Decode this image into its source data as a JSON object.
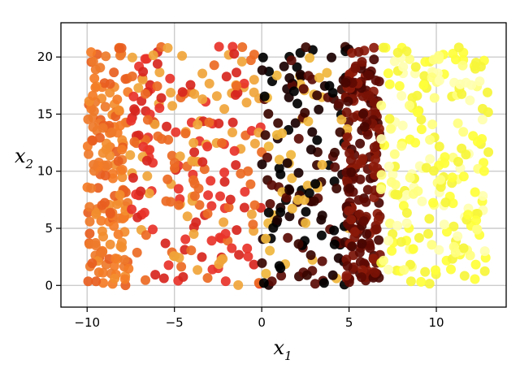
{
  "chart_data": {
    "type": "scatter",
    "xlabel": "x",
    "xlabel_sub": "1",
    "ylabel": "x",
    "ylabel_sub": "2",
    "xlim": [
      -11.5,
      14
    ],
    "ylim": [
      -1.9,
      23
    ],
    "x_ticks": [
      -10,
      -5,
      0,
      5,
      10
    ],
    "x_tick_labels": [
      "−10",
      "−5",
      "0",
      "5",
      "10"
    ],
    "y_ticks": [
      0,
      5,
      10,
      15,
      20
    ],
    "y_tick_labels": [
      "0",
      "5",
      "10",
      "15",
      "20"
    ],
    "grid": true,
    "legend": "none",
    "point_distribution": {
      "x_range": [
        -10,
        13
      ],
      "y_range": [
        0,
        21
      ],
      "approx_point_count": 1000,
      "colormap": "hot"
    },
    "clusters": [
      {
        "x_range": [
          -10,
          -7.6
        ],
        "y_range": [
          0,
          21
        ],
        "count": 170,
        "colors": [
          "#f47c26",
          "#ee7a2a",
          "#e85e20",
          "#f28d2e"
        ]
      },
      {
        "x_range": [
          -7.6,
          0
        ],
        "y_range": [
          0,
          21
        ],
        "count": 230,
        "colors": [
          "#e8332a",
          "#d7261e",
          "#f0a53a",
          "#ec6a24"
        ]
      },
      {
        "x_range": [
          0,
          5
        ],
        "y_range": [
          0,
          21
        ],
        "count": 180,
        "colors": [
          "#1b0000",
          "#000000",
          "#3a0500",
          "#5a0b05",
          "#f0b63c"
        ]
      },
      {
        "x_range": [
          4.8,
          6.8
        ],
        "y_range": [
          0,
          21
        ],
        "count": 200,
        "colors": [
          "#7a1206",
          "#5e0a03",
          "#8c1a0a",
          "#4a0602"
        ]
      },
      {
        "x_range": [
          6.8,
          13
        ],
        "y_range": [
          0,
          21
        ],
        "count": 220,
        "colors": [
          "#ffff3a",
          "#ffff80",
          "#ffffb0",
          "#f6f53a"
        ]
      }
    ]
  }
}
